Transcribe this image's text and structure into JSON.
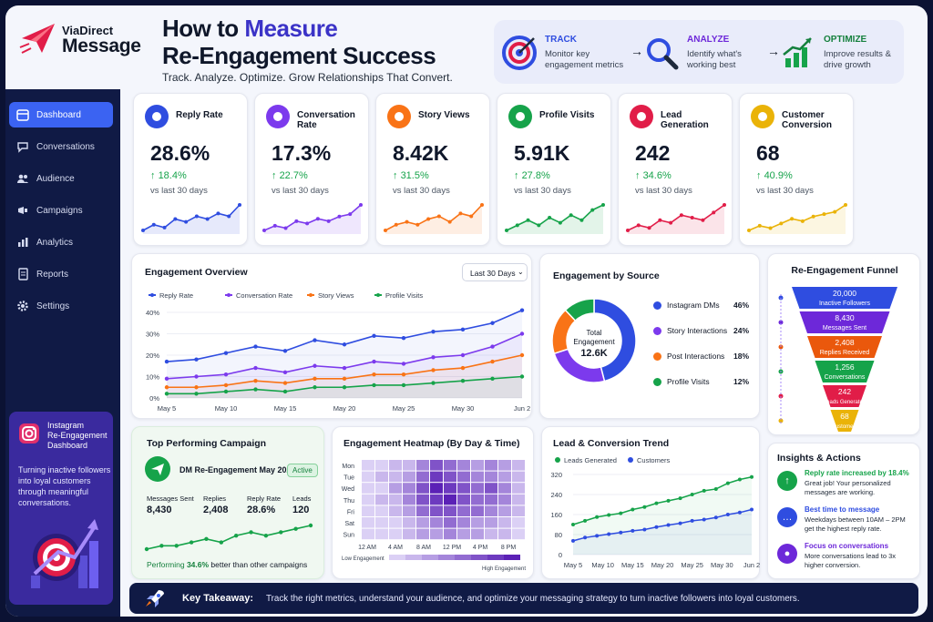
{
  "brand": {
    "line1": "ViaDirect",
    "line2": "Message"
  },
  "header": {
    "title_part1": "How to ",
    "title_accent": "Measure",
    "title_line2": "Re-Engagement Success",
    "tagline": "Track. Analyze. Optimize. Grow Relationships That Convert."
  },
  "steps": [
    {
      "title": "TRACK",
      "desc": "Monitor key engagement metrics",
      "color": "#2f4de0",
      "icon": "target-icon"
    },
    {
      "title": "ANALYZE",
      "desc": "Identify what's working best",
      "color": "#6d28d9",
      "icon": "magnifier-icon"
    },
    {
      "title": "OPTIMIZE",
      "desc": "Improve results & drive growth",
      "color": "#15803d",
      "icon": "growth-chart-icon"
    }
  ],
  "nav": [
    {
      "label": "Dashboard",
      "icon": "calendar-icon",
      "active": true
    },
    {
      "label": "Conversations",
      "icon": "chat-icon"
    },
    {
      "label": "Audience",
      "icon": "people-icon"
    },
    {
      "label": "Campaigns",
      "icon": "megaphone-icon"
    },
    {
      "label": "Analytics",
      "icon": "bar-chart-icon"
    },
    {
      "label": "Reports",
      "icon": "document-icon"
    },
    {
      "label": "Settings",
      "icon": "gear-icon"
    }
  ],
  "ig_card": {
    "title_lines": [
      "Instagram",
      "Re-Engagement",
      "Dashboard"
    ],
    "desc_lines": [
      "Turning inactive followers",
      "into loyal customers",
      "through meaningful",
      "conversations."
    ]
  },
  "kpis": [
    {
      "title": "Reply Rate",
      "value": "28.6%",
      "delta": "18.4%",
      "sub": "vs last 30 days",
      "color": "#2f4de0",
      "icon": "chat-bubble-icon",
      "spark": [
        4,
        6,
        5,
        8,
        7,
        9,
        8,
        10,
        9,
        13
      ]
    },
    {
      "title": "Conversation Rate",
      "value": "17.3%",
      "delta": "22.7%",
      "sub": "vs last 30 days",
      "color": "#7c3aed",
      "icon": "people-icon",
      "spark": [
        3,
        5,
        4,
        7,
        6,
        8,
        7,
        9,
        10,
        14
      ]
    },
    {
      "title": "Story Views",
      "value": "8.42K",
      "delta": "31.5%",
      "sub": "vs last 30 days",
      "color": "#f97316",
      "icon": "eye-icon",
      "spark": [
        3,
        5,
        6,
        5,
        7,
        8,
        6,
        9,
        8,
        12
      ]
    },
    {
      "title": "Profile Visits",
      "value": "5.91K",
      "delta": "27.8%",
      "sub": "vs last 30 days",
      "color": "#16a34a",
      "icon": "person-icon",
      "spark": [
        4,
        6,
        8,
        6,
        9,
        7,
        10,
        8,
        12,
        14
      ]
    },
    {
      "title": "Lead Generation",
      "value": "242",
      "delta": "34.6%",
      "sub": "vs last 30 days",
      "color": "#e11d48",
      "icon": "magnet-icon",
      "spark": [
        3,
        5,
        4,
        7,
        6,
        9,
        8,
        7,
        10,
        13
      ]
    },
    {
      "title": "Customer Conversion",
      "value": "68",
      "delta": "40.9%",
      "sub": "vs last 30 days",
      "color": "#eab308",
      "icon": "star-icon",
      "spark": [
        3,
        5,
        4,
        6,
        8,
        7,
        9,
        10,
        11,
        14
      ]
    }
  ],
  "engagement_overview": {
    "title": "Engagement Overview",
    "range": "Last 30 Days",
    "chart_data": {
      "type": "line",
      "x": [
        "May 5",
        "",
        "May 10",
        "",
        "May 15",
        "",
        "May 20",
        "",
        "May 25",
        "",
        "May 30",
        "",
        "Jun 2"
      ],
      "xticks": [
        "May 5",
        "May 10",
        "May 15",
        "May 20",
        "May 25",
        "May 30",
        "Jun 2"
      ],
      "yticks": [
        "0%",
        "10%",
        "20%",
        "30%",
        "40%"
      ],
      "ylim": [
        0,
        40
      ],
      "series": [
        {
          "name": "Reply Rate",
          "color": "#2f4de0",
          "values": [
            17,
            18,
            21,
            24,
            22,
            27,
            25,
            29,
            28,
            31,
            32,
            35,
            41
          ]
        },
        {
          "name": "Conversation Rate",
          "color": "#7c3aed",
          "values": [
            9,
            10,
            11,
            14,
            12,
            15,
            14,
            17,
            16,
            19,
            20,
            24,
            30
          ]
        },
        {
          "name": "Story Views",
          "color": "#f97316",
          "values": [
            5,
            5,
            6,
            8,
            7,
            9,
            9,
            11,
            11,
            13,
            14,
            17,
            20
          ]
        },
        {
          "name": "Profile Visits",
          "color": "#16a34a",
          "values": [
            2,
            2,
            3,
            4,
            3,
            5,
            5,
            6,
            6,
            7,
            8,
            9,
            10
          ]
        }
      ]
    }
  },
  "engagement_source": {
    "title": "Engagement by Source",
    "center_label_1": "Total",
    "center_label_2": "Engagement",
    "center_value": "12.6K",
    "chart_data": {
      "type": "pie",
      "labels": [
        "Instagram DMs",
        "Story Interactions",
        "Post Interactions",
        "Profile Visits"
      ],
      "values": [
        46,
        24,
        18,
        12
      ],
      "value_labels": [
        "46%",
        "24%",
        "18%",
        "12%"
      ],
      "colors": [
        "#2f4de0",
        "#7c3aed",
        "#f97316",
        "#16a34a"
      ]
    }
  },
  "funnel": {
    "title": "Re-Engagement Funnel",
    "stages": [
      {
        "value": "20,000",
        "label": "Inactive Followers",
        "color": "#2f4de0"
      },
      {
        "value": "8,430",
        "label": "Messages Sent",
        "color": "#6d28d9"
      },
      {
        "value": "2,408",
        "label": "Replies Received",
        "color": "#ea580c"
      },
      {
        "value": "1,256",
        "label": "Conversations",
        "color": "#16a34a"
      },
      {
        "value": "242",
        "label": "Leads Generated",
        "color": "#e11d48"
      },
      {
        "value": "68",
        "label": "Customers",
        "color": "#eab308"
      }
    ]
  },
  "campaign": {
    "title": "Top Performing Campaign",
    "name": "DM Re-Engagement May 2024",
    "badge": "Active",
    "stats": [
      {
        "label": "Messages Sent",
        "value": "8,430"
      },
      {
        "label": "Replies",
        "value": "2,408"
      },
      {
        "label": "Reply Rate",
        "value": "28.6%"
      },
      {
        "label": "Leads",
        "value": "120"
      }
    ],
    "spark": [
      3,
      4,
      4,
      5,
      6,
      5,
      7,
      8,
      7,
      8,
      9,
      10
    ],
    "perf_prefix": "Performing ",
    "perf_value": "34.6%",
    "perf_suffix": " better than other campaigns"
  },
  "heatmap": {
    "title": "Engagement Heatmap (By Day & Time)",
    "days": [
      "Mon",
      "Tue",
      "Wed",
      "Thu",
      "Fri",
      "Sat",
      "Sun"
    ],
    "times": [
      "12 AM",
      "4 AM",
      "8 AM",
      "12 PM",
      "4 PM",
      "8 PM"
    ],
    "legend_low": "Low Engagement",
    "legend_high": "High Engagement",
    "chart_data": {
      "type": "heatmap",
      "rows": [
        "Mon",
        "Tue",
        "Wed",
        "Thu",
        "Fri",
        "Sat",
        "Sun"
      ],
      "values": [
        [
          1,
          1,
          2,
          2,
          4,
          6,
          5,
          4,
          3,
          4,
          3,
          2
        ],
        [
          1,
          2,
          2,
          3,
          5,
          7,
          6,
          5,
          4,
          4,
          3,
          2
        ],
        [
          1,
          1,
          3,
          4,
          6,
          8,
          7,
          6,
          5,
          6,
          4,
          2
        ],
        [
          1,
          2,
          2,
          4,
          6,
          7,
          8,
          6,
          5,
          5,
          4,
          2
        ],
        [
          1,
          1,
          2,
          3,
          5,
          6,
          6,
          5,
          5,
          4,
          3,
          2
        ],
        [
          1,
          1,
          1,
          2,
          3,
          4,
          5,
          4,
          3,
          3,
          2,
          1
        ],
        [
          1,
          1,
          1,
          2,
          3,
          3,
          4,
          3,
          3,
          2,
          2,
          1
        ]
      ],
      "max": 8
    }
  },
  "lead_trend": {
    "title": "Lead & Conversion Trend",
    "chart_data": {
      "type": "line",
      "xticks": [
        "May 5",
        "May 10",
        "May 15",
        "May 20",
        "May 25",
        "May 30",
        "Jun 2"
      ],
      "yticks": [
        "0",
        "80",
        "160",
        "240",
        "320"
      ],
      "ylim": [
        0,
        320
      ],
      "series": [
        {
          "name": "Leads Generated",
          "color": "#16a34a",
          "values": [
            120,
            135,
            150,
            158,
            165,
            180,
            190,
            205,
            215,
            225,
            240,
            255,
            262,
            285,
            300,
            310
          ]
        },
        {
          "name": "Customers",
          "color": "#2f4de0",
          "values": [
            55,
            68,
            75,
            82,
            88,
            95,
            100,
            110,
            118,
            125,
            135,
            140,
            148,
            160,
            168,
            180
          ]
        }
      ]
    }
  },
  "insights": {
    "title": "Insights & Actions",
    "items": [
      {
        "title": "Reply rate increased by 18.4%",
        "desc": [
          "Great job! Your personalized",
          "messages are working."
        ],
        "color": "#16a34a",
        "title_color": "#16a34a",
        "icon": "arrow-up-icon"
      },
      {
        "title": "Best time to message",
        "desc": [
          "Weekdays between 10AM – 2PM",
          "get the highest reply rate."
        ],
        "color": "#2f4de0",
        "title_color": "#2f4de0",
        "icon": "chat-icon"
      },
      {
        "title": "Focus on conversations",
        "desc": [
          "More conversations lead to 3x",
          "higher conversion."
        ],
        "color": "#6d28d9",
        "title_color": "#6d28d9",
        "icon": "people-icon"
      }
    ]
  },
  "takeaway": {
    "label": "Key Takeaway:",
    "text": "Track the right metrics, understand your audience, and optimize your messaging strategy to turn inactive followers into loyal customers."
  }
}
